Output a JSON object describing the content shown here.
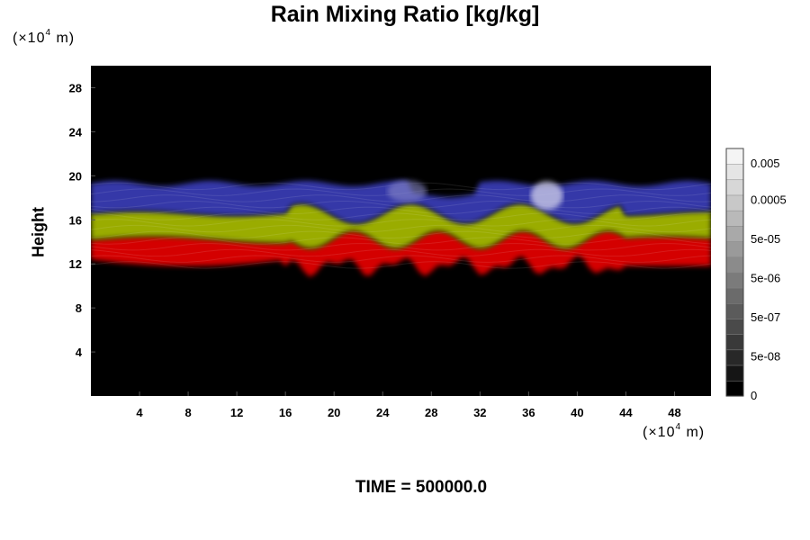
{
  "chart_data": {
    "type": "heatmap",
    "title": "Rain Mixing Ratio [kg/kg]",
    "ylabel": "Height",
    "xlabel": "",
    "x_unit": {
      "prefix": "(×10",
      "exp": "4",
      "suffix": " m)"
    },
    "y_unit": {
      "prefix": "(×10",
      "exp": "4",
      "suffix": " m)"
    },
    "footer": "TIME = 500000.0",
    "xlim": [
      0,
      51
    ],
    "ylim": [
      0,
      30
    ],
    "xticks": [
      "4",
      "8",
      "12",
      "16",
      "20",
      "24",
      "28",
      "32",
      "36",
      "40",
      "44",
      "48"
    ],
    "yticks": [
      "4",
      "8",
      "12",
      "16",
      "20",
      "24",
      "28"
    ],
    "colorbar": {
      "labels": [
        "0",
        "5e-08",
        "5e-07",
        "5e-06",
        "5e-05",
        "0.0005",
        "0.005"
      ],
      "levels": 16,
      "low_color": "#000000",
      "high_color": "#f4f4f4"
    },
    "layers": [
      {
        "name": "red",
        "color": "#d40000",
        "y_range": [
          11.5,
          14.0
        ]
      },
      {
        "name": "yellow",
        "color": "#9aac00",
        "y_range": [
          14.0,
          16.5
        ]
      },
      {
        "name": "blue",
        "color": "#3438a8",
        "y_range": [
          16.5,
          19.5
        ]
      }
    ]
  }
}
